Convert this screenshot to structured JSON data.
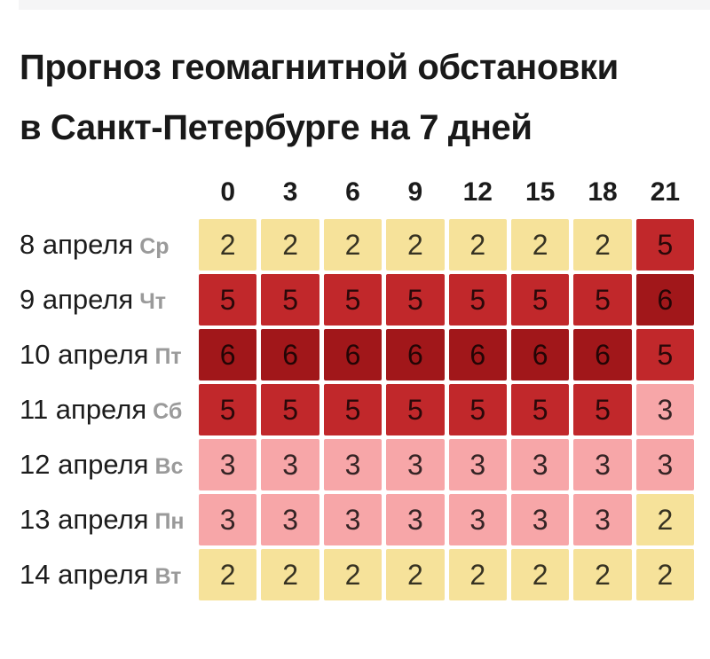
{
  "title": {
    "line1": "Прогноз геомагнитной обстановки",
    "line2": "в Санкт-Петербурге на 7 дней"
  },
  "chart_data": {
    "type": "heatmap",
    "title": "Прогноз геомагнитной обстановки в Санкт-Петербурге на 7 дней",
    "columns": [
      "0",
      "3",
      "6",
      "9",
      "12",
      "15",
      "18",
      "21"
    ],
    "rows": [
      {
        "date": "8 апреля",
        "weekday": "Ср",
        "values": [
          2,
          2,
          2,
          2,
          2,
          2,
          2,
          5
        ]
      },
      {
        "date": "9 апреля",
        "weekday": "Чт",
        "values": [
          5,
          5,
          5,
          5,
          5,
          5,
          5,
          6
        ]
      },
      {
        "date": "10 апреля",
        "weekday": "Пт",
        "values": [
          6,
          6,
          6,
          6,
          6,
          6,
          6,
          5
        ]
      },
      {
        "date": "11 апреля",
        "weekday": "Сб",
        "values": [
          5,
          5,
          5,
          5,
          5,
          5,
          5,
          3
        ]
      },
      {
        "date": "12 апреля",
        "weekday": "Вс",
        "values": [
          3,
          3,
          3,
          3,
          3,
          3,
          3,
          3
        ]
      },
      {
        "date": "13 апреля",
        "weekday": "Пн",
        "values": [
          3,
          3,
          3,
          3,
          3,
          3,
          3,
          2
        ]
      },
      {
        "date": "14 апреля",
        "weekday": "Вт",
        "values": [
          2,
          2,
          2,
          2,
          2,
          2,
          2,
          2
        ]
      }
    ],
    "level_colors": {
      "2": "#F6E29A",
      "3": "#F7A6A8",
      "5": "#C1282B",
      "6": "#A1171A"
    },
    "legend_position": "none",
    "grid": false
  }
}
